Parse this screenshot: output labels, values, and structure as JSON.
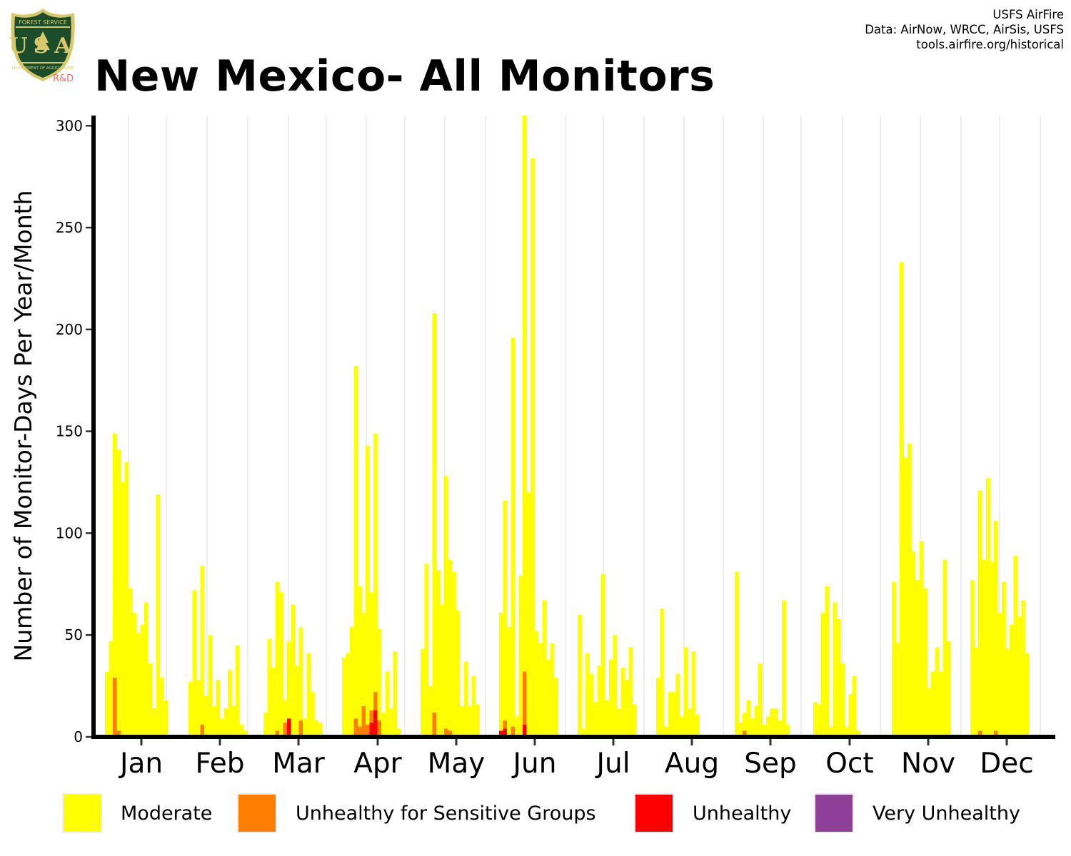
{
  "header": {
    "title": "New Mexico- All Monitors",
    "logo_top_text": "FOREST SERVICE",
    "logo_letters": "USA",
    "logo_bottom_text": "DEPARTMENT OF AGRICULTURE",
    "logo_rd": "R&D",
    "credits": [
      "USFS AirFire",
      "Data: AirNow, WRCC, AirSis, USFS",
      "tools.airfire.org/historical"
    ]
  },
  "colors": {
    "moderate": "#ffff00",
    "usg": "#ff7e00",
    "unhealthy": "#ff0000",
    "very_unhealthy": "#8f3f97",
    "gridline": "#dddddd",
    "axis": "#000000"
  },
  "chart_data": {
    "type": "bar",
    "stacked": true,
    "ylabel": "Number of Monitor-Days Per Year/Month",
    "xlabel": "",
    "ylim": [
      0,
      305
    ],
    "yticks": [
      0,
      50,
      100,
      150,
      200,
      250,
      300
    ],
    "grid": "vertical",
    "legend_position": "bottom",
    "months": [
      "Jan",
      "Feb",
      "Mar",
      "Apr",
      "May",
      "Jun",
      "Jul",
      "Aug",
      "Sep",
      "Oct",
      "Nov",
      "Dec"
    ],
    "series": [
      {
        "name": "Moderate",
        "color": "#ffff00",
        "values": [
          [
            32,
            47,
            149,
            141,
            125,
            135,
            73,
            61,
            51,
            55,
            66,
            36,
            14,
            119,
            29,
            18
          ],
          [
            27,
            72,
            28,
            84,
            20,
            50,
            15,
            28,
            9,
            14,
            33,
            15,
            45,
            6,
            3
          ],
          [
            12,
            48,
            34,
            76,
            71,
            18,
            47,
            65,
            35,
            54,
            9,
            41,
            22,
            8,
            7
          ],
          [
            39,
            41,
            54,
            182,
            74,
            61,
            143,
            71,
            149,
            53,
            12,
            32,
            14,
            42,
            4
          ],
          [
            43,
            85,
            25,
            208,
            82,
            65,
            128,
            87,
            81,
            62,
            15,
            37,
            15,
            30,
            16
          ],
          [
            61,
            116,
            54,
            196,
            10,
            79,
            305,
            120,
            284,
            52,
            46,
            67,
            38,
            46,
            29
          ],
          [
            60,
            4,
            41,
            31,
            17,
            35,
            80,
            18,
            38,
            50,
            14,
            34,
            28,
            44,
            16
          ],
          [
            29,
            63,
            5,
            22,
            22,
            31,
            10,
            44,
            14,
            42,
            11
          ],
          [
            81,
            7,
            12,
            18,
            9,
            15,
            36,
            6,
            10,
            14,
            14,
            8,
            67,
            6
          ],
          [
            17,
            16,
            61,
            74,
            5,
            66,
            58,
            36,
            5,
            21,
            30,
            3
          ],
          [
            76,
            46,
            233,
            137,
            144,
            91,
            77,
            96,
            73,
            24,
            32,
            44,
            32,
            87,
            47
          ],
          [
            77,
            44,
            121,
            87,
            127,
            86,
            106,
            61,
            76,
            43,
            55,
            89,
            59,
            67,
            41
          ]
        ]
      },
      {
        "name": "Unhealthy for Sensitive Groups",
        "color": "#ff7e00",
        "values": [
          [
            0,
            0,
            29,
            3,
            0,
            0,
            0,
            0,
            0,
            0,
            0,
            0,
            0,
            0,
            0,
            0
          ],
          [
            0,
            0,
            0,
            6,
            0,
            1,
            0,
            0,
            0,
            0,
            0,
            0,
            0,
            0,
            0
          ],
          [
            0,
            0,
            0,
            3,
            0,
            7,
            0,
            0,
            0,
            8,
            0,
            0,
            0,
            0,
            0
          ],
          [
            0,
            1,
            0,
            9,
            5,
            15,
            6,
            13,
            22,
            8,
            0,
            0,
            0,
            0,
            0
          ],
          [
            0,
            1,
            0,
            12,
            1,
            0,
            4,
            3,
            1,
            0,
            0,
            0,
            0,
            0,
            0
          ],
          [
            0,
            8,
            1,
            5,
            0,
            0,
            32,
            0,
            1,
            0,
            0,
            0,
            0,
            0,
            0
          ],
          [
            0,
            0,
            0,
            0,
            0,
            0,
            0,
            0,
            0,
            0,
            0,
            0,
            0,
            0,
            0
          ],
          [
            0,
            0,
            0,
            0,
            0,
            0,
            0,
            0,
            0,
            0,
            0
          ],
          [
            1,
            0,
            3,
            0,
            0,
            0,
            0,
            0,
            0,
            0,
            0,
            0,
            0,
            0
          ],
          [
            0,
            0,
            0,
            0,
            0,
            0,
            0,
            0,
            0,
            0,
            0,
            0
          ],
          [
            0,
            0,
            0,
            0,
            0,
            0,
            0,
            0,
            0,
            0,
            0,
            0,
            0,
            0,
            0
          ],
          [
            0,
            0,
            3,
            0,
            0,
            0,
            3,
            0,
            0,
            0,
            0,
            0,
            0,
            0,
            0
          ]
        ]
      },
      {
        "name": "Unhealthy",
        "color": "#ff0000",
        "values": [
          [
            0,
            0,
            0,
            0,
            0,
            0,
            0,
            0,
            0,
            0,
            0,
            0,
            0,
            0,
            0,
            0
          ],
          [
            0,
            0,
            0,
            0,
            0,
            0,
            0,
            0,
            0,
            0,
            0,
            0,
            0,
            0,
            0
          ],
          [
            0,
            0,
            0,
            0,
            0,
            0,
            9,
            0,
            0,
            0,
            0,
            0,
            0,
            0,
            0
          ],
          [
            0,
            0,
            0,
            0,
            0,
            0,
            0,
            7,
            13,
            0,
            0,
            0,
            0,
            0,
            0
          ],
          [
            0,
            0,
            0,
            0,
            0,
            0,
            0,
            0,
            0,
            0,
            0,
            0,
            0,
            0,
            0
          ],
          [
            3,
            4,
            0,
            0,
            0,
            0,
            6,
            0,
            0,
            0,
            0,
            0,
            0,
            0,
            0
          ],
          [
            0,
            0,
            0,
            0,
            0,
            0,
            0,
            0,
            0,
            0,
            0,
            0,
            0,
            0,
            0
          ],
          [
            0,
            0,
            0,
            0,
            0,
            0,
            0,
            0,
            0,
            0,
            0
          ],
          [
            0,
            0,
            0,
            0,
            0,
            0,
            0,
            0,
            0,
            0,
            0,
            0,
            0,
            0
          ],
          [
            0,
            0,
            0,
            0,
            0,
            0,
            0,
            0,
            0,
            0,
            0,
            0
          ],
          [
            0,
            0,
            0,
            0,
            0,
            0,
            0,
            0,
            0,
            0,
            0,
            0,
            0,
            0,
            0
          ],
          [
            0,
            0,
            0,
            0,
            1,
            0,
            0,
            0,
            0,
            0,
            0,
            0,
            0,
            0,
            0
          ]
        ]
      },
      {
        "name": "Very Unhealthy",
        "color": "#8f3f97",
        "values": [
          [
            0,
            0,
            0,
            0,
            0,
            0,
            0,
            0,
            0,
            0,
            0,
            0,
            0,
            0,
            0,
            0
          ],
          [
            0,
            0,
            0,
            0,
            0,
            0,
            0,
            0,
            0,
            0,
            0,
            0,
            0,
            0,
            0
          ],
          [
            0,
            0,
            0,
            0,
            0,
            0,
            0,
            0,
            0,
            0,
            0,
            0,
            0,
            0,
            0
          ],
          [
            0,
            0,
            0,
            0,
            0,
            0,
            0,
            0,
            0,
            0,
            0,
            0,
            0,
            0,
            0
          ],
          [
            0,
            0,
            0,
            0,
            0,
            0,
            0,
            0,
            0,
            0,
            0,
            0,
            0,
            0,
            0
          ],
          [
            0,
            0,
            0,
            0,
            0,
            0,
            0,
            0,
            0,
            0,
            0,
            0,
            0,
            0,
            0
          ],
          [
            0,
            0,
            0,
            0,
            0,
            0,
            0,
            0,
            0,
            0,
            0,
            0,
            0,
            0,
            0
          ],
          [
            0,
            0,
            0,
            0,
            0,
            0,
            0,
            0,
            0,
            0,
            0
          ],
          [
            0,
            0,
            0,
            0,
            0,
            0,
            0,
            0,
            0,
            0,
            0,
            0,
            0,
            0
          ],
          [
            0,
            0,
            0,
            0,
            0,
            0,
            0,
            0,
            0,
            0,
            0,
            0
          ],
          [
            0,
            0,
            0,
            0,
            0,
            0,
            0,
            0,
            0,
            0,
            0,
            0,
            0,
            0,
            0
          ],
          [
            0,
            0,
            0,
            0,
            0,
            0,
            0,
            0,
            0,
            0,
            0,
            0,
            0,
            0,
            0
          ]
        ]
      }
    ]
  },
  "legend": {
    "moderate": "Moderate",
    "usg": "Unhealthy for Sensitive Groups",
    "unhealthy": "Unhealthy",
    "very_unhealthy": "Very Unhealthy"
  }
}
